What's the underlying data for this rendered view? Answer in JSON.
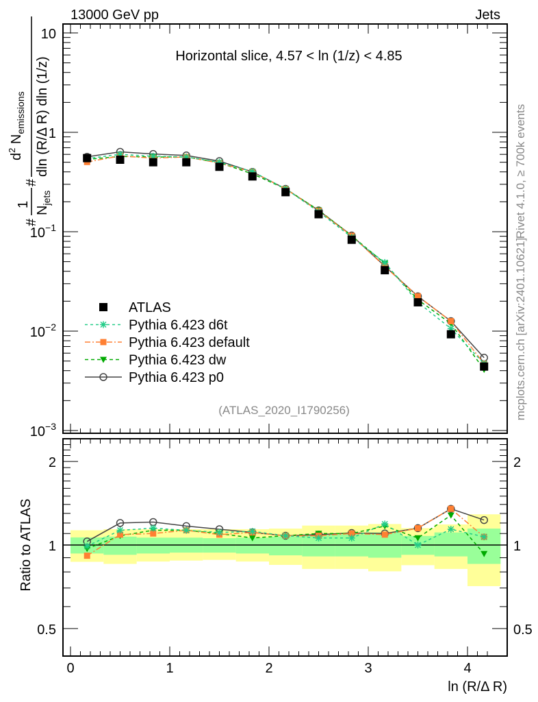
{
  "header": {
    "left": "13000 GeV pp",
    "right": "Jets"
  },
  "side_labels": {
    "rivet": "Rivet 4.1.0, ≥ 700k events",
    "mcplots": "mcplots.cern.ch [arXiv:2401.10621]"
  },
  "analysis_id": "(ATLAS_2020_I1790256)",
  "ylabel_parts": {
    "hash1": "#",
    "num1": "1",
    "den1": "N",
    "den1_sub": "jets",
    "hash2": "#",
    "num2": "d",
    "num2_sup": "2",
    "num2_rest": " N",
    "num2_sub": "emissions",
    "den2": "dln (R/Δ R) dln (1/z)"
  },
  "colors": {
    "atlas": "#000000",
    "d6t": "#22cc88",
    "default": "#ff8033",
    "dw": "#00aa00",
    "p0": "#444444",
    "band_yellow": "#ffff99",
    "band_green": "#99ff99"
  },
  "chart_data": [
    {
      "type": "line",
      "title": "Horizontal slice, 4.57 < ln (1/z) < 4.85",
      "xlabel": "ln (R/Δ R)",
      "ylabel": "1/N_jets d²N_emissions / dln(R/ΔR) dln(1/z)",
      "yscale": "log",
      "xlim": [
        -0.08,
        4.35
      ],
      "ylim": [
        0.001,
        12
      ],
      "xticks": [
        "0",
        "1",
        "2",
        "3",
        "4"
      ],
      "yticks": [
        {
          "v": 0.001,
          "m": "10",
          "e": "−3"
        },
        {
          "v": 0.01,
          "m": "10",
          "e": "−2"
        },
        {
          "v": 0.1,
          "m": "10",
          "e": "−1"
        },
        {
          "v": 1,
          "m": "1",
          "e": ""
        },
        {
          "v": 10,
          "m": "10",
          "e": ""
        }
      ],
      "x": [
        0.167,
        0.5,
        0.833,
        1.167,
        1.5,
        1.833,
        2.167,
        2.5,
        2.833,
        3.167,
        3.5,
        3.833,
        4.167
      ],
      "legend": {
        "placement": "bottom-left",
        "entries": [
          "ATLAS",
          "Pythia 6.423 d6t",
          "Pythia 6.423 default",
          "Pythia 6.423 dw",
          "Pythia 6.423 p0"
        ]
      },
      "series": [
        {
          "name": "ATLAS",
          "key": "atlas",
          "values": [
            0.55,
            0.53,
            0.5,
            0.5,
            0.45,
            0.36,
            0.25,
            0.15,
            0.083,
            0.041,
            0.0195,
            0.0093,
            0.0044
          ]
        },
        {
          "name": "Pythia 6.423 d6t",
          "key": "d6t",
          "values": [
            0.545,
            0.6,
            0.575,
            0.565,
            0.5,
            0.403,
            0.27,
            0.159,
            0.088,
            0.049,
            0.0195,
            0.0106,
            0.0047
          ]
        },
        {
          "name": "Pythia 6.423 default",
          "key": "default",
          "values": [
            0.503,
            0.578,
            0.55,
            0.565,
            0.49,
            0.4,
            0.27,
            0.162,
            0.091,
            0.0447,
            0.0224,
            0.0126,
            0.0047
          ]
        },
        {
          "name": "Pythia 6.423 dw",
          "key": "dw",
          "values": [
            0.534,
            0.572,
            0.565,
            0.565,
            0.495,
            0.382,
            0.27,
            0.165,
            0.091,
            0.048,
            0.0207,
            0.0119,
            0.0041
          ]
        },
        {
          "name": "Pythia 6.423 p0",
          "key": "p0",
          "values": [
            0.567,
            0.636,
            0.605,
            0.585,
            0.513,
            0.4,
            0.27,
            0.1635,
            0.0917,
            0.0451,
            0.0224,
            0.0126,
            0.0054
          ]
        }
      ]
    },
    {
      "type": "line",
      "xlabel": "ln (R/Δ R)",
      "ylabel": "Ratio to ATLAS",
      "yscale": "log",
      "ylim": [
        0.42,
        2.4
      ],
      "yticks": [
        "0.5",
        "1",
        "2"
      ],
      "x": [
        0.167,
        0.5,
        0.833,
        1.167,
        1.5,
        1.833,
        2.167,
        2.5,
        2.833,
        3.167,
        3.5,
        3.833,
        4.167
      ],
      "band_yellow": [
        [
          0.87,
          1.13
        ],
        [
          0.855,
          1.14
        ],
        [
          0.872,
          1.14
        ],
        [
          0.879,
          1.14
        ],
        [
          0.884,
          1.14
        ],
        [
          0.872,
          1.14
        ],
        [
          0.848,
          1.146
        ],
        [
          0.82,
          1.175
        ],
        [
          0.82,
          1.175
        ],
        [
          0.804,
          1.19
        ],
        [
          0.846,
          1.15
        ],
        [
          0.82,
          1.186
        ],
        [
          0.711,
          1.29
        ]
      ],
      "band_green": [
        [
          0.932,
          1.065
        ],
        [
          0.922,
          1.072
        ],
        [
          0.932,
          1.063
        ],
        [
          0.939,
          1.063
        ],
        [
          0.939,
          1.058
        ],
        [
          0.932,
          1.063
        ],
        [
          0.918,
          1.072
        ],
        [
          0.91,
          1.093
        ],
        [
          0.91,
          1.093
        ],
        [
          0.9,
          1.11
        ],
        [
          0.922,
          1.078
        ],
        [
          0.91,
          1.11
        ],
        [
          0.855,
          1.146
        ]
      ],
      "series": [
        {
          "name": "Pythia 6.423 d6t",
          "key": "d6t",
          "values": [
            0.99,
            1.13,
            1.15,
            1.13,
            1.11,
            1.12,
            1.08,
            1.06,
            1.06,
            1.19,
            1.0,
            1.14,
            1.07
          ]
        },
        {
          "name": "Pythia 6.423 default",
          "key": "default",
          "values": [
            0.915,
            1.09,
            1.1,
            1.13,
            1.09,
            1.11,
            1.08,
            1.08,
            1.1,
            1.09,
            1.15,
            1.35,
            1.07
          ]
        },
        {
          "name": "Pythia 6.423 dw",
          "key": "dw",
          "values": [
            0.97,
            1.08,
            1.13,
            1.13,
            1.1,
            1.06,
            1.08,
            1.1,
            1.1,
            1.17,
            1.06,
            1.28,
            0.93
          ]
        },
        {
          "name": "Pythia 6.423 p0",
          "key": "p0",
          "values": [
            1.03,
            1.2,
            1.21,
            1.17,
            1.14,
            1.11,
            1.08,
            1.09,
            1.105,
            1.1,
            1.15,
            1.35,
            1.23
          ]
        }
      ]
    }
  ]
}
